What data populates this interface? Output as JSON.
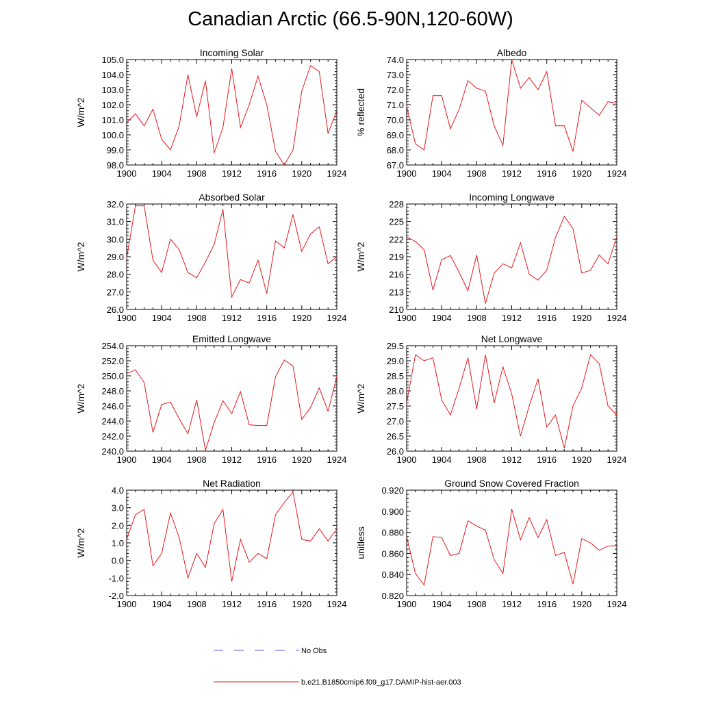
{
  "title": "Canadian Arctic (66.5-90N,120-60W)",
  "legend": {
    "obs_label": "No Obs",
    "obs_color": "#5b5bd6",
    "model_label": "b.e21.B1850cmip6.f09_g17.DAMIP-hist-aer.003",
    "model_color": "#e8151b"
  },
  "chart_data": [
    {
      "type": "line",
      "title": "Incoming Solar",
      "ylabel": "W/m^2",
      "x": [
        1900,
        1901,
        1902,
        1903,
        1904,
        1905,
        1906,
        1907,
        1908,
        1909,
        1910,
        1911,
        1912,
        1913,
        1914,
        1915,
        1916,
        1917,
        1918,
        1919,
        1920,
        1921,
        1922,
        1923,
        1924
      ],
      "xlim": [
        1900,
        1924
      ],
      "xticks": [
        "1900",
        "1904",
        "1908",
        "1912",
        "1916",
        "1920",
        "1924"
      ],
      "ylim": [
        98.0,
        105.0
      ],
      "yticks": [
        "98.0",
        "99.0",
        "100.0",
        "101.0",
        "102.0",
        "103.0",
        "104.0",
        "105.0"
      ],
      "series": [
        {
          "name": "b.e21.B1850cmip6.f09_g17.DAMIP-hist-aer.003",
          "values": [
            100.8,
            101.4,
            100.6,
            101.7,
            99.7,
            99.0,
            100.6,
            104.0,
            101.2,
            103.6,
            98.8,
            100.5,
            104.4,
            100.5,
            102.0,
            103.9,
            102.0,
            98.9,
            98.0,
            99.0,
            102.9,
            104.6,
            104.2,
            100.1,
            101.6
          ]
        }
      ]
    },
    {
      "type": "line",
      "title": "Albedo",
      "ylabel": "% reflected",
      "x": [
        1900,
        1901,
        1902,
        1903,
        1904,
        1905,
        1906,
        1907,
        1908,
        1909,
        1910,
        1911,
        1912,
        1913,
        1914,
        1915,
        1916,
        1917,
        1918,
        1919,
        1920,
        1921,
        1922,
        1923,
        1924
      ],
      "xlim": [
        1900,
        1924
      ],
      "xticks": [
        "1900",
        "1904",
        "1908",
        "1912",
        "1916",
        "1920",
        "1924"
      ],
      "ylim": [
        67.0,
        74.0
      ],
      "yticks": [
        "67.0",
        "68.0",
        "69.0",
        "70.0",
        "71.0",
        "72.0",
        "73.0",
        "74.0"
      ],
      "series": [
        {
          "name": "b.e21.B1850cmip6.f09_g17.DAMIP-hist-aer.003",
          "values": [
            70.9,
            68.4,
            68.0,
            71.6,
            71.6,
            69.4,
            70.7,
            72.6,
            72.1,
            71.9,
            69.6,
            68.3,
            74.0,
            72.1,
            72.8,
            72.0,
            73.2,
            69.6,
            69.6,
            67.9,
            71.3,
            70.8,
            70.3,
            71.2,
            71.1
          ]
        }
      ]
    },
    {
      "type": "line",
      "title": "Absorbed Solar",
      "ylabel": "W/m^2",
      "x": [
        1900,
        1901,
        1902,
        1903,
        1904,
        1905,
        1906,
        1907,
        1908,
        1909,
        1910,
        1911,
        1912,
        1913,
        1914,
        1915,
        1916,
        1917,
        1918,
        1919,
        1920,
        1921,
        1922,
        1923,
        1924
      ],
      "xlim": [
        1900,
        1924
      ],
      "xticks": [
        "1900",
        "1904",
        "1908",
        "1912",
        "1916",
        "1920",
        "1924"
      ],
      "ylim": [
        26.0,
        32.0
      ],
      "yticks": [
        "26.0",
        "27.0",
        "28.0",
        "29.0",
        "30.0",
        "31.0",
        "32.0"
      ],
      "series": [
        {
          "name": "b.e21.B1850cmip6.f09_g17.DAMIP-hist-aer.003",
          "values": [
            28.9,
            31.9,
            31.9,
            28.8,
            28.1,
            30.0,
            29.4,
            28.1,
            27.8,
            28.7,
            29.7,
            31.7,
            26.7,
            27.7,
            27.5,
            28.8,
            26.9,
            29.9,
            29.5,
            31.4,
            29.3,
            30.3,
            30.7,
            28.6,
            29.0
          ]
        }
      ]
    },
    {
      "type": "line",
      "title": "Incoming Longwave",
      "ylabel": "W/m^2",
      "x": [
        1900,
        1901,
        1902,
        1903,
        1904,
        1905,
        1906,
        1907,
        1908,
        1909,
        1910,
        1911,
        1912,
        1913,
        1914,
        1915,
        1916,
        1917,
        1918,
        1919,
        1920,
        1921,
        1922,
        1923,
        1924
      ],
      "xlim": [
        1900,
        1924
      ],
      "xticks": [
        "1900",
        "1904",
        "1908",
        "1912",
        "1916",
        "1920",
        "1924"
      ],
      "ylim": [
        210,
        228
      ],
      "yticks": [
        "210",
        "213",
        "216",
        "219",
        "222",
        "225",
        "228"
      ],
      "series": [
        {
          "name": "b.e21.B1850cmip6.f09_g17.DAMIP-hist-aer.003",
          "values": [
            222.4,
            221.6,
            220.2,
            213.3,
            218.5,
            219.2,
            216.3,
            213.2,
            219.3,
            211.0,
            216.2,
            217.8,
            217.1,
            221.4,
            216.0,
            215.0,
            216.7,
            222.3,
            225.9,
            223.8,
            216.2,
            216.7,
            219.3,
            217.8,
            222.4
          ]
        }
      ]
    },
    {
      "type": "line",
      "title": "Emitted Longwave",
      "ylabel": "W/m^2",
      "x": [
        1900,
        1901,
        1902,
        1903,
        1904,
        1905,
        1906,
        1907,
        1908,
        1909,
        1910,
        1911,
        1912,
        1913,
        1914,
        1915,
        1916,
        1917,
        1918,
        1919,
        1920,
        1921,
        1922,
        1923,
        1924
      ],
      "xlim": [
        1900,
        1924
      ],
      "xticks": [
        "1900",
        "1904",
        "1908",
        "1912",
        "1916",
        "1920",
        "1924"
      ],
      "ylim": [
        240.0,
        254.0
      ],
      "yticks": [
        "240.0",
        "242.0",
        "244.0",
        "246.0",
        "248.0",
        "250.0",
        "252.0",
        "254.0"
      ],
      "series": [
        {
          "name": "b.e21.B1850cmip6.f09_g17.DAMIP-hist-aer.003",
          "values": [
            250.3,
            250.8,
            249.1,
            242.5,
            246.2,
            246.5,
            244.3,
            242.3,
            246.8,
            240.1,
            243.8,
            246.7,
            245.0,
            247.9,
            243.5,
            243.4,
            243.4,
            249.9,
            252.1,
            251.3,
            244.2,
            245.8,
            248.4,
            245.3,
            249.9
          ]
        }
      ]
    },
    {
      "type": "line",
      "title": "Net Longwave",
      "ylabel": "W/m^2",
      "x": [
        1900,
        1901,
        1902,
        1903,
        1904,
        1905,
        1906,
        1907,
        1908,
        1909,
        1910,
        1911,
        1912,
        1913,
        1914,
        1915,
        1916,
        1917,
        1918,
        1919,
        1920,
        1921,
        1922,
        1923,
        1924
      ],
      "xlim": [
        1900,
        1924
      ],
      "xticks": [
        "1900",
        "1904",
        "1908",
        "1912",
        "1916",
        "1920",
        "1924"
      ],
      "ylim": [
        26.0,
        29.5
      ],
      "yticks": [
        "26.0",
        "26.5",
        "27.0",
        "27.5",
        "28.0",
        "28.5",
        "29.0",
        "29.5"
      ],
      "series": [
        {
          "name": "b.e21.B1850cmip6.f09_g17.DAMIP-hist-aer.003",
          "values": [
            27.6,
            29.2,
            29.0,
            29.1,
            27.7,
            27.2,
            28.1,
            29.1,
            27.4,
            29.2,
            27.6,
            28.8,
            27.9,
            26.5,
            27.5,
            28.4,
            26.8,
            27.2,
            26.1,
            27.5,
            28.1,
            29.2,
            28.9,
            27.5,
            27.2
          ]
        }
      ]
    },
    {
      "type": "line",
      "title": "Net Radiation",
      "ylabel": "W/m^2",
      "x": [
        1900,
        1901,
        1902,
        1903,
        1904,
        1905,
        1906,
        1907,
        1908,
        1909,
        1910,
        1911,
        1912,
        1913,
        1914,
        1915,
        1916,
        1917,
        1918,
        1919,
        1920,
        1921,
        1922,
        1923,
        1924
      ],
      "xlim": [
        1900,
        1924
      ],
      "xticks": [
        "1900",
        "1904",
        "1908",
        "1912",
        "1916",
        "1920",
        "1924"
      ],
      "ylim": [
        -2.0,
        4.0
      ],
      "yticks": [
        "-2.0",
        "-1.0",
        "0.0",
        "1.0",
        "2.0",
        "3.0",
        "4.0"
      ],
      "series": [
        {
          "name": "b.e21.B1850cmip6.f09_g17.DAMIP-hist-aer.003",
          "values": [
            1.2,
            2.6,
            2.9,
            -0.3,
            0.4,
            2.7,
            1.3,
            -1.0,
            0.4,
            -0.4,
            2.1,
            2.9,
            -1.2,
            1.2,
            -0.1,
            0.4,
            0.1,
            2.6,
            3.3,
            3.9,
            1.2,
            1.1,
            1.8,
            1.1,
            1.8
          ]
        }
      ]
    },
    {
      "type": "line",
      "title": "Ground Snow Covered Fraction",
      "ylabel": "unitless",
      "x": [
        1900,
        1901,
        1902,
        1903,
        1904,
        1905,
        1906,
        1907,
        1908,
        1909,
        1910,
        1911,
        1912,
        1913,
        1914,
        1915,
        1916,
        1917,
        1918,
        1919,
        1920,
        1921,
        1922,
        1923,
        1924
      ],
      "xlim": [
        1900,
        1924
      ],
      "xticks": [
        "1900",
        "1904",
        "1908",
        "1912",
        "1916",
        "1920",
        "1924"
      ],
      "ylim": [
        0.82,
        0.92
      ],
      "yticks": [
        "0.820",
        "0.840",
        "0.860",
        "0.880",
        "0.900",
        "0.920"
      ],
      "series": [
        {
          "name": "b.e21.B1850cmip6.f09_g17.DAMIP-hist-aer.003",
          "values": [
            0.876,
            0.841,
            0.83,
            0.876,
            0.875,
            0.858,
            0.86,
            0.891,
            0.886,
            0.882,
            0.854,
            0.841,
            0.902,
            0.873,
            0.894,
            0.875,
            0.892,
            0.858,
            0.861,
            0.831,
            0.874,
            0.87,
            0.863,
            0.867,
            0.867
          ]
        }
      ]
    }
  ]
}
